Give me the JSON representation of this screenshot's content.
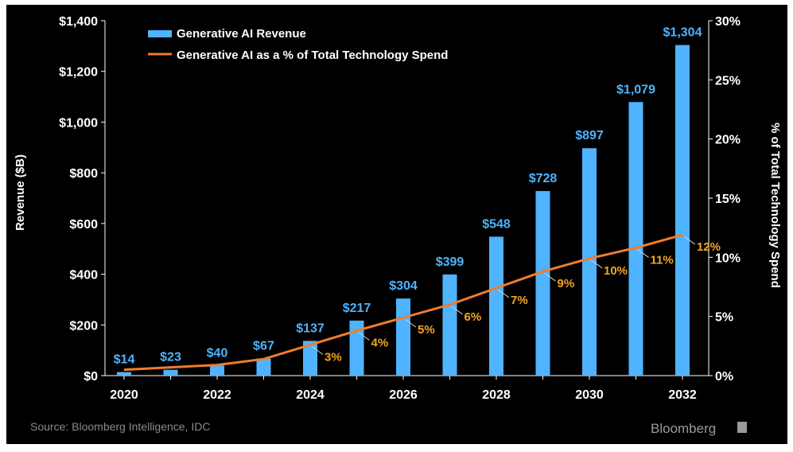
{
  "chart_data": {
    "type": "bar",
    "categories": [
      "2020",
      "2021",
      "2022",
      "2023",
      "2024",
      "2025",
      "2026",
      "2027",
      "2028",
      "2029",
      "2030",
      "2031",
      "2032"
    ],
    "x_tick_labels": [
      "2020",
      "2022",
      "2024",
      "2026",
      "2028",
      "2030",
      "2032"
    ],
    "series": [
      {
        "name": "Generative AI Revenue",
        "type": "bar",
        "axis": "left",
        "values": [
          14,
          23,
          40,
          67,
          137,
          217,
          304,
          399,
          548,
          728,
          897,
          1079,
          1304
        ],
        "labels": [
          "$14",
          "$23",
          "$40",
          "$67",
          "$137",
          "$217",
          "$304",
          "$399",
          "$548",
          "$728",
          "$897",
          "$1,079",
          "$1,304"
        ],
        "color": "#4fb3ff"
      },
      {
        "name": "Generative AI as a % of Total Technology Spend",
        "type": "line",
        "axis": "right",
        "values": [
          0.5,
          0.7,
          0.9,
          1.4,
          2.6,
          3.8,
          4.9,
          6.0,
          7.4,
          8.8,
          9.9,
          10.8,
          11.9
        ],
        "labels": [
          "",
          "",
          "",
          "",
          "3%",
          "4%",
          "5%",
          "6%",
          "7%",
          "9%",
          "10%",
          "11%",
          "12%"
        ],
        "color": "#f07d2b",
        "label_color": "#f5a623"
      }
    ],
    "ylabel": "Revenue ($B)",
    "ylabel_right": "% of Total Technology Spend",
    "ylim": [
      0,
      1400
    ],
    "ylim_right": [
      0,
      30
    ],
    "y_ticks": [
      "$0",
      "$200",
      "$400",
      "$600",
      "$800",
      "$1,000",
      "$1,200",
      "$1,400"
    ],
    "y_ticks_right": [
      "0%",
      "5%",
      "10%",
      "15%",
      "20%",
      "25%",
      "30%"
    ],
    "grid": false,
    "legend_position": "top-left",
    "background": "#000000"
  },
  "footer": {
    "source": "Source: Bloomberg Intelligence, IDC",
    "brand": "Bloomberg"
  }
}
